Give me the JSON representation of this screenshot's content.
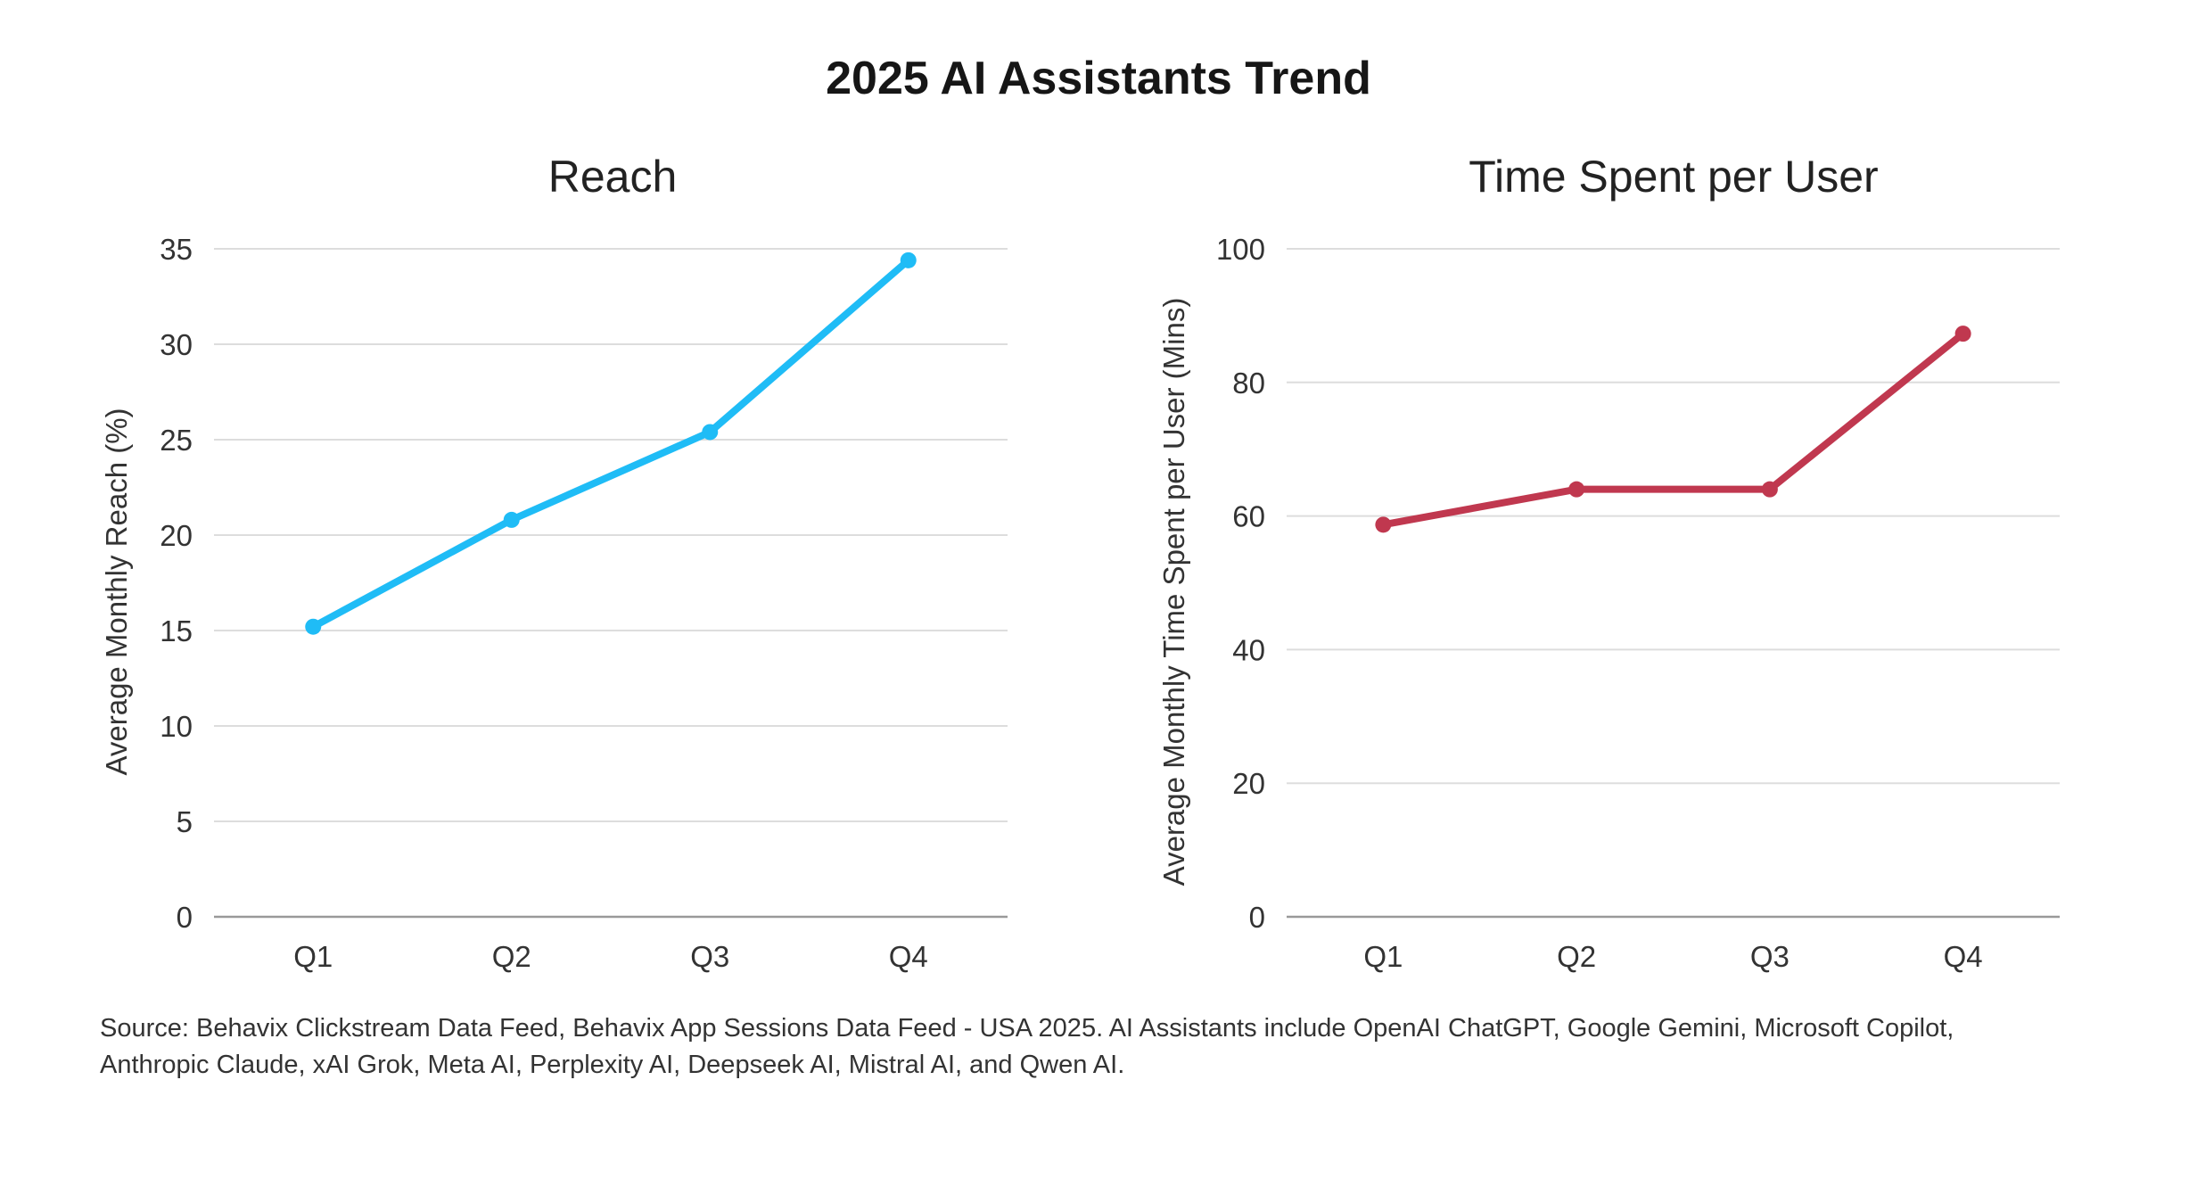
{
  "title": "2025 AI Assistants Trend",
  "source": "Source: Behavix Clickstream Data Feed, Behavix App Sessions Data Feed - USA 2025. AI Assistants include OpenAI ChatGPT, Google Gemini, Microsoft Copilot, Anthropic Claude, xAI Grok, Meta AI, Perplexity AI, Deepseek AI, Mistral AI, and Qwen AI.",
  "chart_data": [
    {
      "type": "line",
      "title": "Reach",
      "xlabel": "",
      "ylabel": "Average Monthly Reach (%)",
      "categories": [
        "Q1",
        "Q2",
        "Q3",
        "Q4"
      ],
      "values": [
        15.2,
        20.8,
        25.4,
        34.4
      ],
      "ylim": [
        0,
        35
      ],
      "yticks": [
        0,
        5,
        10,
        15,
        20,
        25,
        30,
        35
      ],
      "grid": true,
      "color": "#1fbcf6"
    },
    {
      "type": "line",
      "title": "Time Spent per User",
      "xlabel": "",
      "ylabel": "Average Monthly Time Spent per User (Mins)",
      "categories": [
        "Q1",
        "Q2",
        "Q3",
        "Q4"
      ],
      "values": [
        58.7,
        64.0,
        64.0,
        87.3
      ],
      "ylim": [
        0,
        100
      ],
      "yticks": [
        0,
        20,
        40,
        60,
        80,
        100
      ],
      "grid": true,
      "color": "#c0384f"
    }
  ]
}
